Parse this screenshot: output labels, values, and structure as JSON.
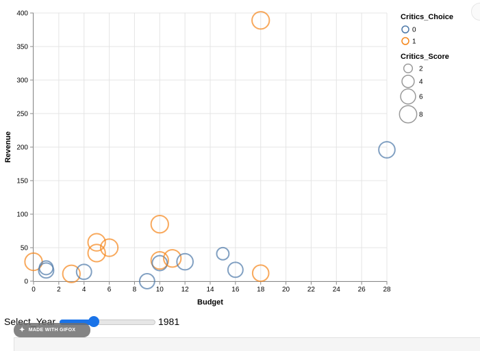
{
  "chart_data": {
    "type": "scatter",
    "xlabel": "Budget",
    "ylabel": "Revenue",
    "xlim": [
      0,
      28
    ],
    "ylim": [
      0,
      400
    ],
    "x_ticks": [
      0,
      2,
      4,
      6,
      8,
      10,
      12,
      14,
      16,
      18,
      20,
      22,
      24,
      26,
      28
    ],
    "y_ticks": [
      0,
      50,
      100,
      150,
      200,
      250,
      300,
      350,
      400
    ],
    "grid": true,
    "legend_placement": "right",
    "color_legend": {
      "title": "Critics_Choice",
      "items": [
        {
          "label": "0",
          "color": "#4c78a8"
        },
        {
          "label": "1",
          "color": "#f58518"
        }
      ]
    },
    "size_legend": {
      "title": "Critics_Score",
      "items": [
        {
          "label": "2",
          "value": 2
        },
        {
          "label": "4",
          "value": 4
        },
        {
          "label": "6",
          "value": 6
        },
        {
          "label": "8",
          "value": 8
        }
      ]
    },
    "points": [
      {
        "x": 0,
        "y": 29,
        "choice": 1,
        "score": 8
      },
      {
        "x": 1,
        "y": 20,
        "choice": 0,
        "score": 5
      },
      {
        "x": 1,
        "y": 16,
        "choice": 0,
        "score": 6
      },
      {
        "x": 3,
        "y": 11,
        "choice": 1,
        "score": 8
      },
      {
        "x": 4,
        "y": 14,
        "choice": 0,
        "score": 6
      },
      {
        "x": 5,
        "y": 58,
        "choice": 1,
        "score": 8
      },
      {
        "x": 5,
        "y": 42,
        "choice": 1,
        "score": 8
      },
      {
        "x": 6,
        "y": 50,
        "choice": 1,
        "score": 8
      },
      {
        "x": 9,
        "y": 0,
        "choice": 0,
        "score": 6
      },
      {
        "x": 10,
        "y": 85,
        "choice": 1,
        "score": 8
      },
      {
        "x": 10,
        "y": 31,
        "choice": 1,
        "score": 8
      },
      {
        "x": 10,
        "y": 27,
        "choice": 0,
        "score": 6
      },
      {
        "x": 11,
        "y": 34,
        "choice": 1,
        "score": 8
      },
      {
        "x": 12,
        "y": 29,
        "choice": 0,
        "score": 7
      },
      {
        "x": 15,
        "y": 41,
        "choice": 0,
        "score": 4
      },
      {
        "x": 16,
        "y": 17,
        "choice": 0,
        "score": 6
      },
      {
        "x": 18,
        "y": 389,
        "choice": 1,
        "score": 8
      },
      {
        "x": 18,
        "y": 12,
        "choice": 1,
        "score": 7
      },
      {
        "x": 28,
        "y": 196,
        "choice": 0,
        "score": 7
      }
    ]
  },
  "controls": {
    "select_label": "Select_Year",
    "year_value": "1981",
    "slider_fraction": 0.36
  },
  "badge": {
    "text": "MADE WITH GIFOX"
  }
}
